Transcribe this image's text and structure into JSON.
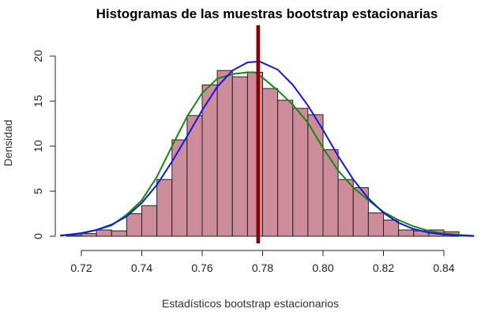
{
  "chart_data": {
    "type": "bar",
    "title": "Histogramas de las muestras bootstrap estacionarias",
    "xlabel": "Estadísticos bootstrap estacionarios",
    "ylabel": "Densidad",
    "xlim": [
      0.71,
      0.855
    ],
    "ylim": [
      0,
      20.5
    ],
    "xticks": [
      0.72,
      0.74,
      0.76,
      0.78,
      0.8,
      0.82,
      0.84
    ],
    "xtick_labels": [
      "0.72",
      "0.74",
      "0.76",
      "0.78",
      "0.80",
      "0.82",
      "0.84"
    ],
    "yticks": [
      0,
      5,
      10,
      15,
      20
    ],
    "ytick_labels": [
      "0",
      "5",
      "10",
      "15",
      "20"
    ],
    "histogram": {
      "bin_width": 0.005,
      "bin_starts": [
        0.715,
        0.72,
        0.725,
        0.73,
        0.735,
        0.74,
        0.745,
        0.75,
        0.755,
        0.76,
        0.765,
        0.77,
        0.775,
        0.78,
        0.785,
        0.79,
        0.795,
        0.8,
        0.805,
        0.81,
        0.815,
        0.82,
        0.825,
        0.83,
        0.835,
        0.84
      ],
      "densities": [
        0.1,
        0.3,
        0.7,
        0.6,
        2.5,
        3.4,
        6.3,
        10.7,
        13.4,
        16.8,
        18.4,
        17.7,
        18.2,
        16.4,
        15.1,
        14.2,
        13.5,
        9.6,
        6.3,
        5.4,
        2.6,
        1.8,
        0.7,
        0.6,
        0.7,
        0.5
      ]
    },
    "series": [
      {
        "color": "#118b11",
        "x": [
          0.713,
          0.72,
          0.725,
          0.73,
          0.735,
          0.74,
          0.745,
          0.75,
          0.755,
          0.76,
          0.765,
          0.77,
          0.775,
          0.7775,
          0.78,
          0.785,
          0.79,
          0.795,
          0.8,
          0.805,
          0.81,
          0.815,
          0.82,
          0.825,
          0.83,
          0.835,
          0.84,
          0.845,
          0.85
        ],
        "y": [
          0.1,
          0.3,
          0.7,
          1.2,
          2.4,
          4.0,
          6.6,
          10.0,
          13.3,
          15.9,
          17.5,
          18.0,
          18.2,
          18.2,
          17.6,
          16.2,
          14.6,
          12.6,
          9.8,
          7.3,
          5.4,
          4.0,
          2.7,
          1.8,
          1.1,
          0.6,
          0.3,
          0.15,
          0.05
        ]
      },
      {
        "color": "#1515e6",
        "x": [
          0.713,
          0.72,
          0.725,
          0.73,
          0.735,
          0.74,
          0.745,
          0.75,
          0.755,
          0.76,
          0.765,
          0.77,
          0.775,
          0.779,
          0.785,
          0.79,
          0.795,
          0.8,
          0.805,
          0.81,
          0.815,
          0.82,
          0.825,
          0.83,
          0.835,
          0.84,
          0.845,
          0.85
        ],
        "y": [
          0.05,
          0.35,
          0.7,
          1.3,
          2.2,
          3.7,
          5.7,
          8.3,
          11.1,
          14.0,
          16.6,
          18.4,
          19.3,
          19.4,
          18.5,
          16.8,
          14.5,
          11.8,
          8.9,
          6.3,
          4.2,
          2.6,
          1.5,
          0.8,
          0.4,
          0.2,
          0.08,
          0.03
        ]
      }
    ],
    "vertical_line": {
      "x": 0.7785,
      "color": "#8b0000"
    },
    "grid": false,
    "legend": "none"
  }
}
